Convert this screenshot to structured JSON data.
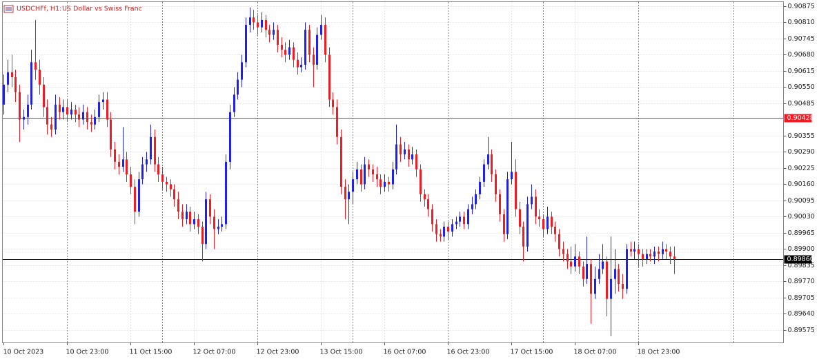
{
  "chart_data": {
    "type": "candlestick",
    "title": "USDCHFf, H1:",
    "subtitle": "US Dollar vs Swiss Franc",
    "up_color": "#1f22e6",
    "down_color": "#ef1c24",
    "grid": true,
    "ylim": [
      0.89525,
      0.90875
    ],
    "yticks": [
      0.90875,
      {
        "value": 0.9081,
        "label": "0.90810"
      },
      0.90745,
      {
        "value": 0.9068,
        "label": "0.90680"
      },
      0.90615,
      {
        "value": 0.9055,
        "label": "0.90550"
      },
      0.90485,
      0.90355,
      {
        "value": 0.9029,
        "label": "0.90290"
      },
      0.90225,
      {
        "value": 0.9016,
        "label": "0.90160"
      },
      0.90095,
      {
        "value": 0.9003,
        "label": "0.90030"
      },
      0.89965,
      {
        "value": 0.899,
        "label": "0.89900"
      },
      0.89835,
      {
        "value": 0.8977,
        "label": "0.89770"
      },
      0.89705,
      {
        "value": 0.8964,
        "label": "0.89640"
      },
      0.89575
    ],
    "price_lines": [
      {
        "value": 0.90428,
        "label": "0.90428",
        "color": "#ef1c24"
      },
      {
        "value": 0.8986,
        "label": "0.89860",
        "color": "#000000"
      }
    ],
    "x_labels": [
      "10 Oct 2023",
      "10 Oct 23:00",
      "11 Oct 15:00",
      "12 Oct 07:00",
      "12 Oct 23:00",
      "13 Oct 15:00",
      "16 Oct 07:00",
      "16 Oct 23:00",
      "17 Oct 15:00",
      "18 Oct 07:00",
      "18 Oct 23:00"
    ],
    "candles": [
      [
        0.9048,
        0.906,
        0.9044,
        0.9056
      ],
      [
        0.9056,
        0.9066,
        0.9053,
        0.9061
      ],
      [
        0.9061,
        0.9068,
        0.9055,
        0.9059
      ],
      [
        0.9059,
        0.9062,
        0.9049,
        0.9053
      ],
      [
        0.9053,
        0.9056,
        0.9033,
        0.9042
      ],
      [
        0.9042,
        0.9046,
        0.9038,
        0.9043
      ],
      [
        0.9043,
        0.9052,
        0.904,
        0.9048
      ],
      [
        0.9048,
        0.907,
        0.9046,
        0.9065
      ],
      [
        0.9065,
        0.9082,
        0.9058,
        0.9062
      ],
      [
        0.9062,
        0.9066,
        0.9052,
        0.9056
      ],
      [
        0.9056,
        0.9059,
        0.9043,
        0.9047
      ],
      [
        0.9047,
        0.905,
        0.9036,
        0.904
      ],
      [
        0.904,
        0.9043,
        0.9035,
        0.9038
      ],
      [
        0.9038,
        0.9052,
        0.9036,
        0.9048
      ],
      [
        0.9048,
        0.9051,
        0.9042,
        0.9045
      ],
      [
        0.9045,
        0.905,
        0.9042,
        0.9047
      ],
      [
        0.9047,
        0.905,
        0.9041,
        0.9044
      ],
      [
        0.9044,
        0.9049,
        0.9042,
        0.9046
      ],
      [
        0.9046,
        0.9048,
        0.9041,
        0.9044
      ],
      [
        0.9044,
        0.9047,
        0.9039,
        0.9042
      ],
      [
        0.9042,
        0.9048,
        0.904,
        0.9045
      ],
      [
        0.9045,
        0.9047,
        0.9038,
        0.9041
      ],
      [
        0.9041,
        0.9044,
        0.9037,
        0.904
      ],
      [
        0.904,
        0.9046,
        0.9038,
        0.9043
      ],
      [
        0.9043,
        0.9052,
        0.9041,
        0.9049
      ],
      [
        0.9049,
        0.9053,
        0.9046,
        0.905
      ],
      [
        0.905,
        0.9053,
        0.9039,
        0.9042
      ],
      [
        0.9042,
        0.9045,
        0.9027,
        0.903
      ],
      [
        0.903,
        0.9033,
        0.9022,
        0.9025
      ],
      [
        0.9025,
        0.9028,
        0.902,
        0.9023
      ],
      [
        0.9023,
        0.9039,
        0.9021,
        0.9026
      ],
      [
        0.9026,
        0.9029,
        0.9017,
        0.902
      ],
      [
        0.902,
        0.9023,
        0.9012,
        0.9015
      ],
      [
        0.9015,
        0.9018,
        0.9,
        0.9005
      ],
      [
        0.9005,
        0.9021,
        0.9003,
        0.9018
      ],
      [
        0.9018,
        0.9027,
        0.9016,
        0.9024
      ],
      [
        0.9024,
        0.9029,
        0.9021,
        0.9026
      ],
      [
        0.9026,
        0.904,
        0.9024,
        0.9035
      ],
      [
        0.9035,
        0.9038,
        0.9021,
        0.9024
      ],
      [
        0.9024,
        0.9027,
        0.9017,
        0.902
      ],
      [
        0.902,
        0.9023,
        0.9014,
        0.9017
      ],
      [
        0.9017,
        0.9019,
        0.9013,
        0.9016
      ],
      [
        0.9016,
        0.9018,
        0.9011,
        0.9014
      ],
      [
        0.9014,
        0.9016,
        0.9007,
        0.901
      ],
      [
        0.901,
        0.9013,
        0.9002,
        0.9005
      ],
      [
        0.9005,
        0.9008,
        0.8999,
        0.9002
      ],
      [
        0.9002,
        0.9008,
        0.9,
        0.9005
      ],
      [
        0.9005,
        0.9007,
        0.8997,
        0.9
      ],
      [
        0.9,
        0.9005,
        0.8998,
        0.9002
      ],
      [
        0.9002,
        0.9004,
        0.8996,
        0.8999
      ],
      [
        0.8999,
        0.9001,
        0.8985,
        0.8992
      ],
      [
        0.8992,
        0.9013,
        0.899,
        0.901
      ],
      [
        0.901,
        0.9012,
        0.9,
        0.9003
      ],
      [
        0.9003,
        0.9006,
        0.899,
        0.8998
      ],
      [
        0.8998,
        0.9002,
        0.8996,
        0.8999
      ],
      [
        0.8999,
        0.9003,
        0.8997,
        0.9
      ],
      [
        0.9,
        0.9028,
        0.8998,
        0.9025
      ],
      [
        0.9025,
        0.9048,
        0.9022,
        0.9045
      ],
      [
        0.9045,
        0.9055,
        0.9043,
        0.9052
      ],
      [
        0.9052,
        0.9061,
        0.905,
        0.9058
      ],
      [
        0.9058,
        0.9068,
        0.9055,
        0.9065
      ],
      [
        0.9065,
        0.9083,
        0.9063,
        0.908
      ],
      [
        0.908,
        0.9087,
        0.9077,
        0.9083
      ],
      [
        0.9083,
        0.9086,
        0.9078,
        0.9081
      ],
      [
        0.9081,
        0.9084,
        0.9076,
        0.9079
      ],
      [
        0.9079,
        0.9085,
        0.9077,
        0.9082
      ],
      [
        0.9082,
        0.9084,
        0.9075,
        0.9078
      ],
      [
        0.9078,
        0.908,
        0.9073,
        0.9076
      ],
      [
        0.9076,
        0.9081,
        0.9074,
        0.9078
      ],
      [
        0.9078,
        0.908,
        0.9069,
        0.9072
      ],
      [
        0.9072,
        0.9075,
        0.9067,
        0.907
      ],
      [
        0.907,
        0.9073,
        0.9065,
        0.9068
      ],
      [
        0.9068,
        0.9074,
        0.9066,
        0.9071
      ],
      [
        0.9071,
        0.9073,
        0.9063,
        0.9066
      ],
      [
        0.9066,
        0.9069,
        0.906,
        0.9063
      ],
      [
        0.9063,
        0.9067,
        0.9061,
        0.9064
      ],
      [
        0.9064,
        0.9081,
        0.9062,
        0.9078
      ],
      [
        0.9078,
        0.908,
        0.9065,
        0.9068
      ],
      [
        0.9068,
        0.9071,
        0.9055,
        0.9064
      ],
      [
        0.9064,
        0.9079,
        0.9062,
        0.9076
      ],
      [
        0.9076,
        0.9084,
        0.9074,
        0.908
      ],
      [
        0.908,
        0.9083,
        0.9065,
        0.9068
      ],
      [
        0.9068,
        0.9071,
        0.9047,
        0.905
      ],
      [
        0.905,
        0.9053,
        0.9044,
        0.9047
      ],
      [
        0.9047,
        0.905,
        0.9032,
        0.9035
      ],
      [
        0.9035,
        0.9038,
        0.9012,
        0.9015
      ],
      [
        0.9015,
        0.9018,
        0.9002,
        0.901
      ],
      [
        0.901,
        0.9016,
        0.9,
        0.9013
      ],
      [
        0.9013,
        0.9021,
        0.9008,
        0.9018
      ],
      [
        0.9018,
        0.9025,
        0.9016,
        0.9022
      ],
      [
        0.9022,
        0.9024,
        0.9013,
        0.9016
      ],
      [
        0.9016,
        0.9027,
        0.9014,
        0.9024
      ],
      [
        0.9024,
        0.9026,
        0.9019,
        0.9022
      ],
      [
        0.9022,
        0.9024,
        0.9017,
        0.902
      ],
      [
        0.902,
        0.9023,
        0.9015,
        0.9018
      ],
      [
        0.9018,
        0.902,
        0.9012,
        0.9015
      ],
      [
        0.9015,
        0.902,
        0.9013,
        0.9017
      ],
      [
        0.9017,
        0.9019,
        0.9013,
        0.9016
      ],
      [
        0.9016,
        0.9025,
        0.9014,
        0.9022
      ],
      [
        0.9022,
        0.904,
        0.902,
        0.9032
      ],
      [
        0.9032,
        0.9035,
        0.9025,
        0.9028
      ],
      [
        0.9028,
        0.9033,
        0.9026,
        0.903
      ],
      [
        0.903,
        0.9032,
        0.9023,
        0.9026
      ],
      [
        0.9026,
        0.9031,
        0.9024,
        0.9028
      ],
      [
        0.9028,
        0.903,
        0.9019,
        0.9022
      ],
      [
        0.9022,
        0.9024,
        0.9009,
        0.9012
      ],
      [
        0.9012,
        0.9014,
        0.9007,
        0.901
      ],
      [
        0.901,
        0.9012,
        0.9003,
        0.9006
      ],
      [
        0.9006,
        0.9008,
        0.8997,
        0.9
      ],
      [
        0.9,
        0.9002,
        0.8993,
        0.8996
      ],
      [
        0.8996,
        0.8998,
        0.8993,
        0.8995
      ],
      [
        0.8995,
        0.9001,
        0.8993,
        0.8999
      ],
      [
        0.8999,
        0.9001,
        0.8994,
        0.8997
      ],
      [
        0.8997,
        0.9002,
        0.8995,
        0.9
      ],
      [
        0.9,
        0.9003,
        0.8998,
        0.9001
      ],
      [
        0.9001,
        0.9005,
        0.8999,
        0.9003
      ],
      [
        0.9003,
        0.9005,
        0.8998,
        0.9
      ],
      [
        0.9,
        0.9008,
        0.8998,
        0.9006
      ],
      [
        0.9006,
        0.9011,
        0.9004,
        0.9008
      ],
      [
        0.9008,
        0.9014,
        0.9006,
        0.9012
      ],
      [
        0.9012,
        0.9019,
        0.901,
        0.9017
      ],
      [
        0.9017,
        0.9026,
        0.9015,
        0.9024
      ],
      [
        0.9024,
        0.9035,
        0.9022,
        0.9028
      ],
      [
        0.9028,
        0.903,
        0.9017,
        0.902
      ],
      [
        0.902,
        0.9022,
        0.9009,
        0.9012
      ],
      [
        0.9012,
        0.9014,
        0.9001,
        0.9004
      ],
      [
        0.9004,
        0.9006,
        0.8993,
        0.8996
      ],
      [
        0.8996,
        0.9021,
        0.8994,
        0.9018
      ],
      [
        0.9018,
        0.9033,
        0.9016,
        0.9021
      ],
      [
        0.9021,
        0.9026,
        0.9003,
        0.9006
      ],
      [
        0.9006,
        0.9009,
        0.8996,
        0.8999
      ],
      [
        0.8999,
        0.9001,
        0.8985,
        0.8991
      ],
      [
        0.8991,
        0.9011,
        0.8989,
        0.9008
      ],
      [
        0.9008,
        0.9016,
        0.9006,
        0.9011
      ],
      [
        0.9011,
        0.9014,
        0.9,
        0.9003
      ],
      [
        0.9003,
        0.9006,
        0.8999,
        0.9002
      ],
      [
        0.9002,
        0.9004,
        0.8995,
        0.8998
      ],
      [
        0.8998,
        0.9007,
        0.8996,
        0.9003
      ],
      [
        0.9003,
        0.9005,
        0.8996,
        0.8999
      ],
      [
        0.8999,
        0.9001,
        0.8993,
        0.8996
      ],
      [
        0.8996,
        0.8998,
        0.8987,
        0.899
      ],
      [
        0.899,
        0.8993,
        0.8985,
        0.8988
      ],
      [
        0.8988,
        0.899,
        0.8982,
        0.8985
      ],
      [
        0.8985,
        0.8991,
        0.898,
        0.8983
      ],
      [
        0.8983,
        0.8992,
        0.8981,
        0.8987
      ],
      [
        0.8987,
        0.8989,
        0.898,
        0.8983
      ],
      [
        0.8983,
        0.8985,
        0.8975,
        0.8978
      ],
      [
        0.8978,
        0.8995,
        0.8976,
        0.8984
      ],
      [
        0.8984,
        0.8986,
        0.896,
        0.8972
      ],
      [
        0.8972,
        0.8983,
        0.897,
        0.8978
      ],
      [
        0.8978,
        0.8988,
        0.8976,
        0.8982
      ],
      [
        0.8982,
        0.8992,
        0.898,
        0.8985
      ],
      [
        0.8985,
        0.8987,
        0.8963,
        0.897
      ],
      [
        0.897,
        0.8995,
        0.8955,
        0.8978
      ],
      [
        0.8978,
        0.899,
        0.8972,
        0.8982
      ],
      [
        0.8982,
        0.8984,
        0.8973,
        0.8976
      ],
      [
        0.8976,
        0.898,
        0.897,
        0.8974
      ],
      [
        0.8974,
        0.8992,
        0.8972,
        0.899
      ],
      [
        0.899,
        0.8993,
        0.8987,
        0.8989
      ],
      [
        0.8989,
        0.8993,
        0.8986,
        0.899
      ],
      [
        0.899,
        0.8992,
        0.8983,
        0.8988
      ],
      [
        0.8988,
        0.899,
        0.8983,
        0.8986
      ],
      [
        0.8986,
        0.899,
        0.8984,
        0.8988
      ],
      [
        0.8988,
        0.899,
        0.8985,
        0.8987
      ],
      [
        0.8987,
        0.8991,
        0.8984,
        0.8989
      ],
      [
        0.8989,
        0.8991,
        0.8985,
        0.8988
      ],
      [
        0.8988,
        0.8993,
        0.8986,
        0.899
      ],
      [
        0.899,
        0.8992,
        0.8986,
        0.8989
      ],
      [
        0.8989,
        0.8991,
        0.8984,
        0.8987
      ],
      [
        0.8987,
        0.8991,
        0.898,
        0.8986
      ]
    ]
  }
}
